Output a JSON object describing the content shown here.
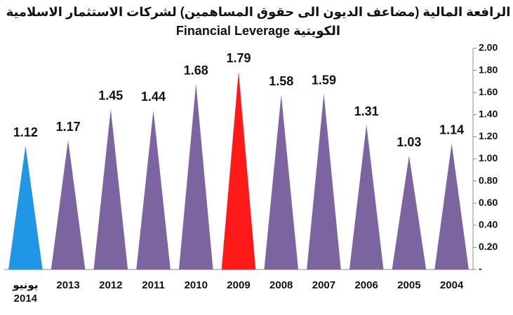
{
  "chart_data": {
    "type": "triangle-bar",
    "title": [
      "الرافعة المالية (مضاعف الديون الى حقوق المساهمين) لشركات الاستثمار الاسلامية",
      "الكويتية Financial Leverage"
    ],
    "categories": [
      "يونيو 2014",
      "2013",
      "2012",
      "2011",
      "2010",
      "2009",
      "2008",
      "2007",
      "2006",
      "2005",
      "2004"
    ],
    "values": [
      1.12,
      1.17,
      1.45,
      1.44,
      1.68,
      1.79,
      1.58,
      1.59,
      1.31,
      1.03,
      1.14
    ],
    "colors": [
      "#1f96e6",
      "#7b64a0",
      "#7b64a0",
      "#7b64a0",
      "#7b64a0",
      "#ff1a1a",
      "#7b64a0",
      "#7b64a0",
      "#7b64a0",
      "#7b64a0",
      "#7b64a0"
    ],
    "ylim": [
      0,
      2
    ],
    "yticks": [
      {
        "value": 0,
        "label": "-"
      },
      {
        "value": 0.2,
        "label": "0.20"
      },
      {
        "value": 0.4,
        "label": "0.40"
      },
      {
        "value": 0.6,
        "label": "0.60"
      },
      {
        "value": 0.8,
        "label": "0.80"
      },
      {
        "value": 1,
        "label": "1.00"
      },
      {
        "value": 1.2,
        "label": "1.20"
      },
      {
        "value": 1.4,
        "label": "1.40"
      },
      {
        "value": 1.6,
        "label": "1.60"
      },
      {
        "value": 1.8,
        "label": "1.80"
      },
      {
        "value": 2,
        "label": "2.00"
      }
    ],
    "grid": false,
    "y_axis_side": "right"
  }
}
